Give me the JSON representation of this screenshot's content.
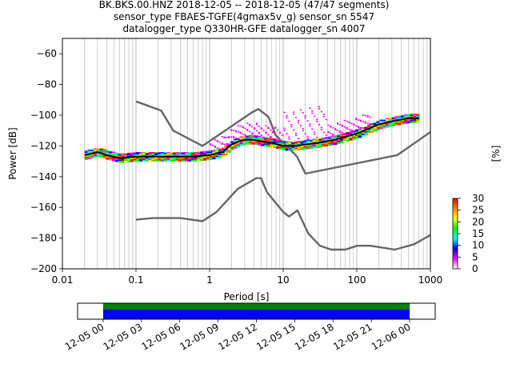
{
  "title_lines": [
    "BK.BKS.00.HNZ   2018-12-05 -- 2018-12-05  (47/47 segments)",
    "sensor_type FBAES-TGFE(4gmax5v_g) sensor_sn 5547",
    "datalogger_type Q330HR-GFE datalogger_sn 4007"
  ],
  "colors": {
    "noise_model": "#666666",
    "mode_line": "#000000",
    "availability_green": "#008000",
    "availability_blue": "#0000ff",
    "outlier_magenta": "#ff00ff"
  },
  "chart_data": [
    {
      "type": "line",
      "description_role": "ppsd",
      "xlabel": "Period [s]",
      "ylabel": "Power [dB]",
      "xscale": "log",
      "xlim": [
        0.01,
        1000
      ],
      "ylim": [
        -200,
        -50
      ],
      "x_ticks": [
        0.01,
        0.1,
        1,
        10,
        100,
        1000
      ],
      "x_tick_labels": [
        "0.01",
        "0.1",
        "1",
        "10",
        "100",
        "1000"
      ],
      "y_ticks": [
        -200,
        -180,
        -160,
        -140,
        -120,
        -100,
        -80,
        -60
      ],
      "y_tick_labels": [
        "−200",
        "−180",
        "−160",
        "−140",
        "−120",
        "−100",
        "−80",
        "−60"
      ],
      "grid": "vertical",
      "series": [
        {
          "role": "high_noise_model",
          "x": [
            0.1,
            0.22,
            0.32,
            0.8,
            3.8,
            4.6,
            6.3,
            7.9,
            15.4,
            20,
            354.8,
            1000
          ],
          "y": [
            -91,
            -97,
            -110,
            -120,
            -98,
            -96,
            -101,
            -113,
            -127,
            -138,
            -126,
            -111
          ]
        },
        {
          "role": "low_noise_model",
          "x": [
            0.1,
            0.17,
            0.4,
            0.8,
            1.24,
            2.4,
            4.3,
            5,
            6,
            10,
            12,
            15.6,
            21.9,
            31.6,
            45,
            70,
            101,
            154,
            328,
            600,
            1000
          ],
          "y": [
            -168,
            -167,
            -167,
            -169,
            -163,
            -148,
            -141,
            -141,
            -150,
            -163,
            -166,
            -162,
            -177,
            -185,
            -187.5,
            -187.5,
            -185,
            -185,
            -187.5,
            -184,
            -178
          ]
        },
        {
          "role": "mode",
          "x": [
            0.02,
            0.03,
            0.04,
            0.06,
            0.1,
            0.3,
            0.6,
            1,
            1.5,
            2,
            2.5,
            3,
            4,
            5,
            7,
            10,
            15,
            20,
            30,
            50,
            100,
            200,
            300,
            500,
            700
          ],
          "y": [
            -126,
            -124,
            -126,
            -128,
            -127,
            -127,
            -127,
            -126,
            -124,
            -119,
            -117,
            -116,
            -116,
            -117,
            -118,
            -120,
            -120,
            -119,
            -118,
            -116,
            -112,
            -106,
            -104,
            -102,
            -102
          ]
        }
      ],
      "colorbar": {
        "label": "[%]",
        "range": [
          0,
          30
        ],
        "ticks": [
          0,
          5,
          10,
          15,
          20,
          25,
          30
        ],
        "tick_labels": [
          "0",
          "5",
          "10",
          "15",
          "20",
          "25",
          "30"
        ],
        "colormap": [
          "#ffffff",
          "#ff00ff",
          "#0000ff",
          "#00ffff",
          "#00ff00",
          "#ffff00",
          "#ff8000",
          "#ff0000"
        ]
      }
    },
    {
      "type": "bar",
      "description_role": "data_availability",
      "x_tick_labels": [
        "12-05 00",
        "12-05 03",
        "12-05 06",
        "12-05 09",
        "12-05 12",
        "12-05 15",
        "12-05 18",
        "12-05 21",
        "12-06 00"
      ],
      "xlim_hours": [
        -2,
        26
      ],
      "segments": [
        {
          "role": "used",
          "start_hour": 0,
          "end_hour": 24
        },
        {
          "role": "available",
          "start_hour": 0,
          "end_hour": 24
        }
      ]
    }
  ]
}
